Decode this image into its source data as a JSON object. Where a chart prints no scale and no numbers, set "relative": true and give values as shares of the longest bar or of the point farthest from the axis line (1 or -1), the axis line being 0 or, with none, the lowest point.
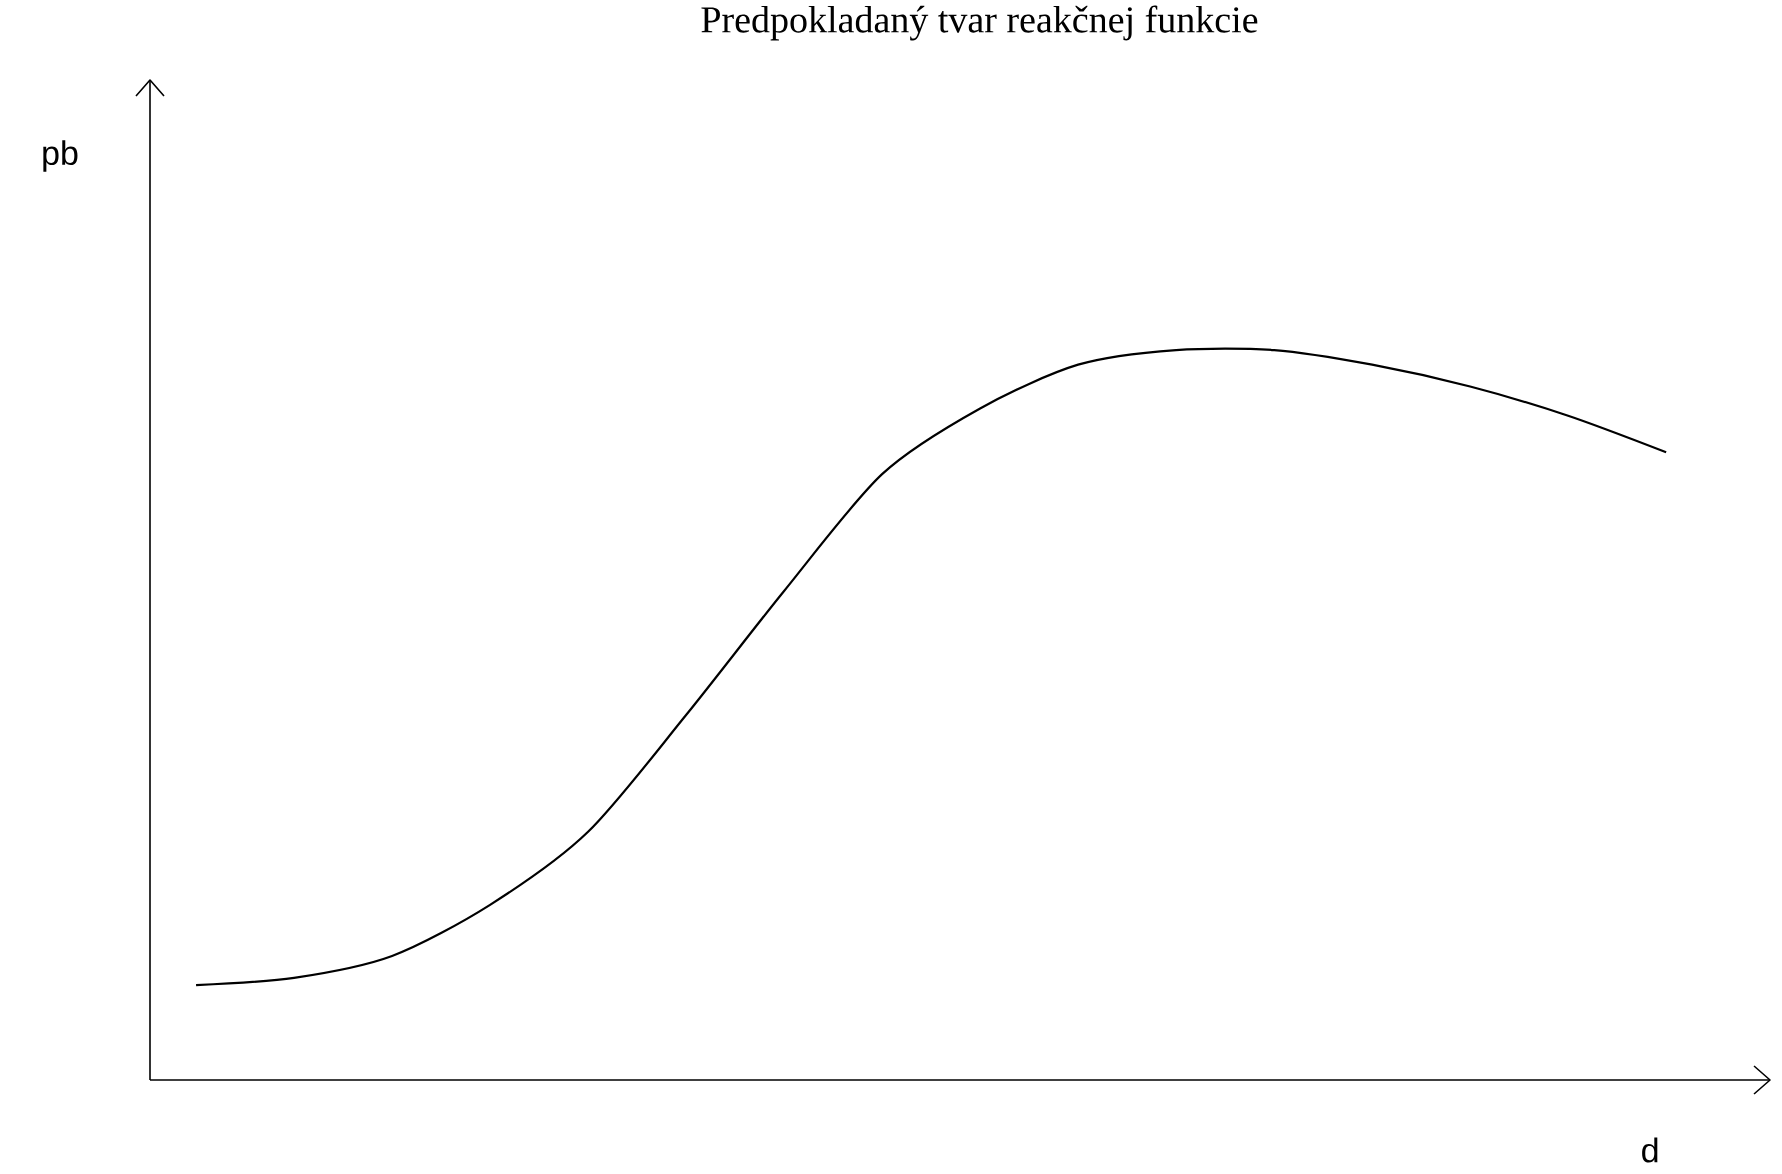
{
  "chart_data": {
    "type": "line",
    "title": "Predpokladaný tvar reakčnej funkcie",
    "xlabel": "d",
    "annotations": [
      "pb"
    ],
    "categories": [
      null,
      null,
      null,
      null,
      null,
      null,
      null,
      null,
      null,
      null,
      null,
      null,
      null,
      null,
      null,
      null
    ],
    "values": [
      0.13,
      0.14,
      0.17,
      0.24,
      0.34,
      0.5,
      0.67,
      0.83,
      0.92,
      0.98,
      1.0,
      1.0,
      0.98,
      0.95,
      0.91,
      0.86
    ],
    "color": "#000000",
    "relative": true,
    "line_style": "solid"
  }
}
